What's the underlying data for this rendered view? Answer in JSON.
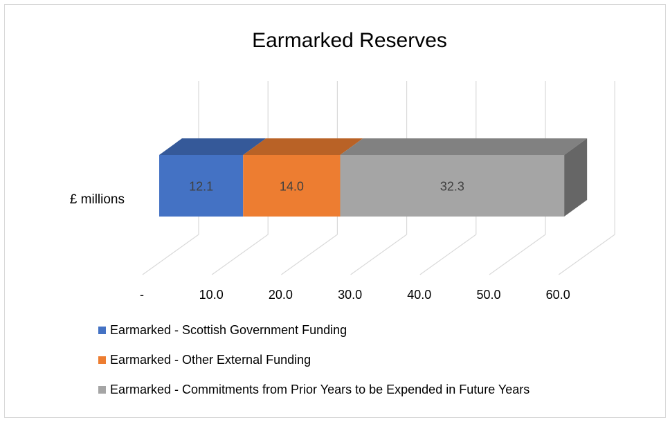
{
  "chart_data": {
    "type": "bar",
    "orientation": "horizontal",
    "stacked": true,
    "style": "3d",
    "title": "Earmarked Reserves",
    "categories": [
      "£ millions"
    ],
    "series": [
      {
        "name": "Earmarked - Scottish Government Funding",
        "values": [
          12.1
        ],
        "label": "12.1",
        "color": "#4472c4"
      },
      {
        "name": "Earmarked - Other External Funding",
        "values": [
          14.0
        ],
        "label": "14.0",
        "color": "#ed7d31"
      },
      {
        "name": "Earmarked - Commitments from Prior Years to be Expended in Future Years",
        "values": [
          32.3
        ],
        "label": "32.3",
        "color": "#a5a5a5"
      }
    ],
    "xticks": [
      "-",
      "10.0",
      "20.0",
      "30.0",
      "40.0",
      "50.0",
      "60.0"
    ],
    "xlim": [
      0,
      60
    ],
    "grid": true,
    "legend_position": "bottom"
  }
}
